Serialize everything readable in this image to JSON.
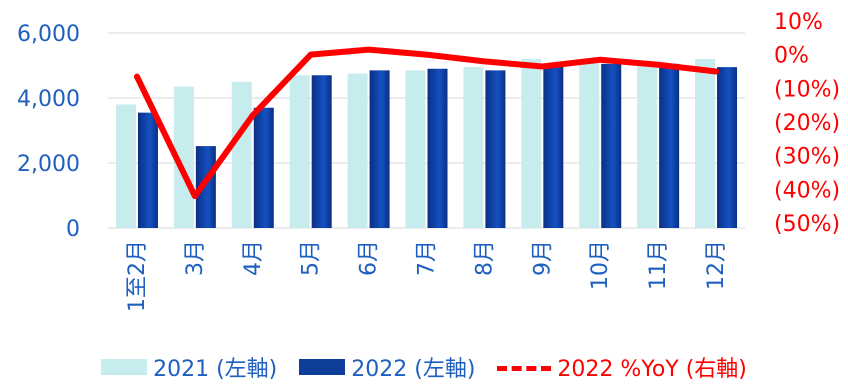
{
  "chart_data": {
    "type": "bar",
    "categories": [
      "1至2月",
      "3月",
      "4月",
      "5月",
      "6月",
      "7月",
      "8月",
      "9月",
      "10月",
      "11月",
      "12月"
    ],
    "series": [
      {
        "name": "2021 (左軸)",
        "type": "bar",
        "axis": "left",
        "color": "#c6ecee",
        "values": [
          3800,
          4350,
          4500,
          4700,
          4750,
          4850,
          4950,
          5200,
          5150,
          5100,
          5200
        ]
      },
      {
        "name": "2022 (左軸)",
        "type": "bar",
        "axis": "left",
        "color": "#0e3d9a",
        "values": [
          3550,
          2520,
          3700,
          4700,
          4850,
          4900,
          4850,
          5050,
          5050,
          5050,
          4950
        ]
      },
      {
        "name": "2022 %YoY (右軸)",
        "type": "line",
        "axis": "right",
        "color": "#ff0000",
        "values": [
          -6.5,
          -42,
          -18,
          0,
          1.5,
          0,
          -2,
          -3.5,
          -1.5,
          -3,
          -5
        ]
      }
    ],
    "left_axis": {
      "ticks": [
        "0",
        "2,000",
        "4,000",
        "6,000"
      ],
      "tick_values": [
        0,
        2000,
        4000,
        6000
      ],
      "range": [
        0,
        6000
      ],
      "color": "#1f5fbf"
    },
    "right_axis": {
      "ticks": [
        "10%",
        "0%",
        "(10%)",
        "(20%)",
        "(30%)",
        "(40%)",
        "(50%)"
      ],
      "tick_values": [
        10,
        0,
        -10,
        -20,
        -30,
        -40,
        -50
      ],
      "range": [
        -50,
        10
      ],
      "color": "#ff0000"
    },
    "grid": true,
    "legend_position": "bottom"
  }
}
